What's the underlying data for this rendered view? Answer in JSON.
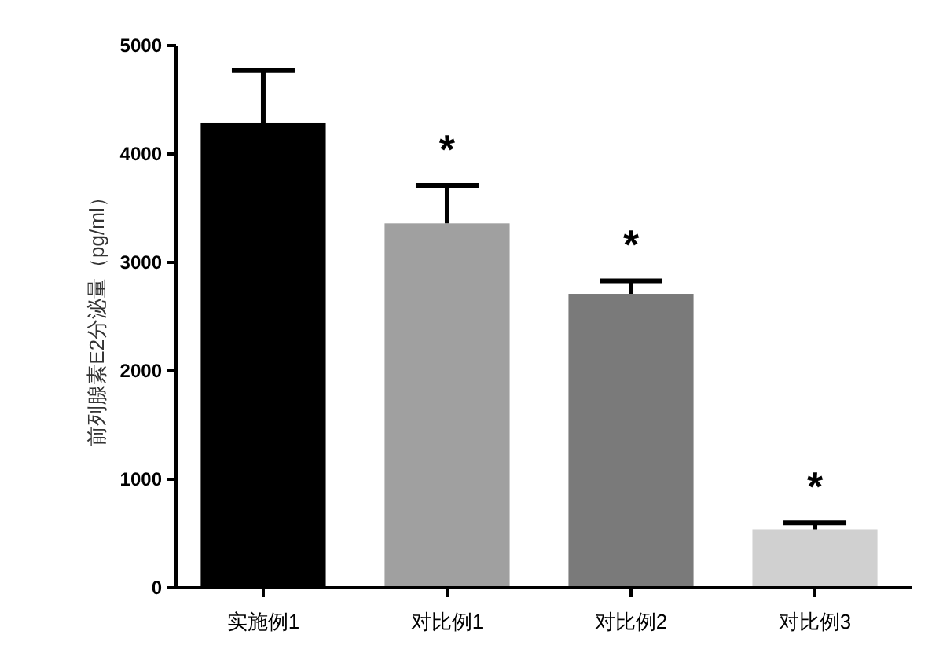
{
  "chart_data": {
    "type": "bar",
    "ylabel": "前列腺素E2分泌量（pg/ml）",
    "categories": [
      "实施例1",
      "对比例1",
      "对比例2",
      "对比例3"
    ],
    "values": [
      4290,
      3360,
      2710,
      540
    ],
    "errors": [
      [
        4290,
        4770
      ],
      [
        3360,
        3710
      ],
      [
        2710,
        2830
      ],
      [
        540,
        600
      ]
    ],
    "colors": [
      "#000000",
      "#a0a0a0",
      "#7a7a7a",
      "#d0d0d0"
    ],
    "ylim": [
      0,
      5000
    ],
    "yticks": [
      0,
      1000,
      2000,
      3000,
      4000,
      5000
    ],
    "annotations": [
      "*",
      "*",
      "*"
    ]
  }
}
